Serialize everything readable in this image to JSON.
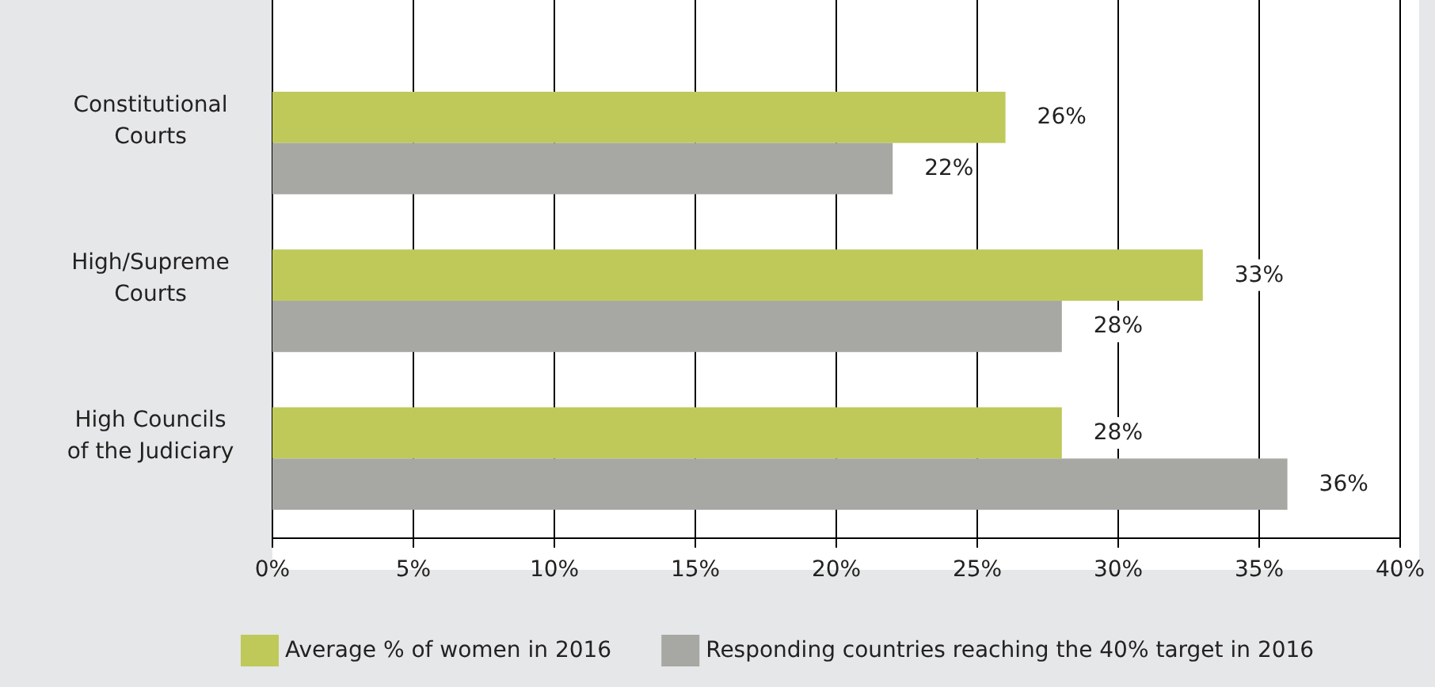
{
  "chart_data": {
    "type": "bar",
    "orientation": "horizontal",
    "categories": [
      "Constitutional Courts",
      "High/Supreme Courts",
      "High Councils of the Judiciary"
    ],
    "series": [
      {
        "name": "Average % of women in 2016",
        "color": "#bfc95a",
        "values": [
          26,
          33,
          28
        ],
        "value_labels": [
          "26%",
          "33%",
          "28%"
        ]
      },
      {
        "name": "Responding countries reaching the 40% target in 2016",
        "color": "#a7a8a4",
        "values": [
          22,
          28,
          36
        ],
        "value_labels": [
          "22%",
          "28%",
          "36%"
        ]
      }
    ],
    "xlim": [
      0,
      40
    ],
    "xticks": [
      {
        "value": 0,
        "label": "0%"
      },
      {
        "value": 5,
        "label": "5%"
      },
      {
        "value": 10,
        "label": "10%"
      },
      {
        "value": 15,
        "label": "15%"
      },
      {
        "value": 20,
        "label": "20%"
      },
      {
        "value": 25,
        "label": "25%"
      },
      {
        "value": 30,
        "label": "30%"
      },
      {
        "value": 35,
        "label": "35%"
      },
      {
        "value": 40,
        "label": "40%"
      }
    ],
    "grid": "x",
    "legend": "bottom"
  }
}
